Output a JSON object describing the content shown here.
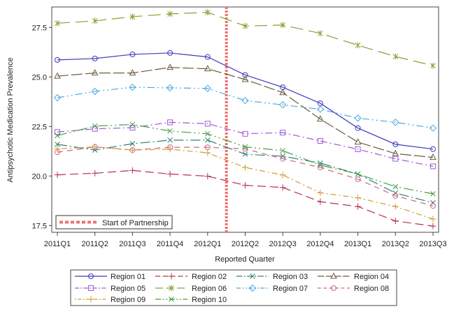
{
  "chart_data": {
    "type": "line",
    "title": "",
    "xlabel": "Reported Quarter",
    "ylabel": "Antipsychotic Medication Prevalence",
    "categories": [
      "2011Q1",
      "2011Q2",
      "2011Q3",
      "2011Q4",
      "2012Q1",
      "2012Q2",
      "2012Q3",
      "2012Q4",
      "2013Q1",
      "2013Q2",
      "2013Q3"
    ],
    "ylim": [
      17.2,
      28.6
    ],
    "yticks": [
      17.5,
      20.0,
      22.5,
      25.0,
      27.5
    ],
    "ytick_labels": [
      "17.5",
      "20.0",
      "22.5",
      "25.0",
      "27.5"
    ],
    "grid": false,
    "reference_line": {
      "label": "Start of Partnership",
      "position": "between 2012Q1 and 2012Q2",
      "color": "#f07070"
    },
    "legend_placement": "bottom",
    "series": [
      {
        "name": "Region 01",
        "color": "#3b3bbf",
        "marker": "circle",
        "dash": "",
        "values": [
          25.86,
          25.93,
          26.14,
          26.21,
          26.01,
          25.1,
          24.48,
          23.67,
          22.42,
          21.6,
          21.36
        ]
      },
      {
        "name": "Region 02",
        "color": "#b8304c",
        "marker": "plus",
        "dash": "12 6",
        "values": [
          20.06,
          20.14,
          20.28,
          20.1,
          19.99,
          19.53,
          19.42,
          18.7,
          18.46,
          17.73,
          17.47
        ]
      },
      {
        "name": "Region 03",
        "color": "#2f8070",
        "marker": "x",
        "dash": "14 4 2 4",
        "values": [
          21.6,
          21.31,
          21.63,
          21.81,
          21.81,
          21.1,
          21.0,
          20.65,
          20.1,
          19.14,
          18.65
        ]
      },
      {
        "name": "Region 04",
        "color": "#6e5c3c",
        "marker": "triangle",
        "dash": "16 4",
        "values": [
          25.04,
          25.2,
          25.2,
          25.48,
          25.41,
          24.87,
          24.21,
          22.87,
          21.71,
          21.13,
          20.94
        ]
      },
      {
        "name": "Region 05",
        "color": "#a05ad0",
        "marker": "square",
        "dash": "10 4 2 4",
        "values": [
          22.22,
          22.38,
          22.44,
          22.71,
          22.64,
          22.13,
          22.19,
          21.77,
          21.35,
          20.87,
          20.49
        ]
      },
      {
        "name": "Region 06",
        "color": "#8aa030",
        "marker": "asterisk",
        "dash": "18 8",
        "values": [
          27.71,
          27.83,
          28.04,
          28.18,
          28.26,
          27.57,
          27.62,
          27.2,
          26.6,
          26.03,
          25.57
        ]
      },
      {
        "name": "Region 07",
        "color": "#4aa8e0",
        "marker": "diamond",
        "dash": "10 4 2 4 2 4",
        "values": [
          23.95,
          24.27,
          24.48,
          24.45,
          24.42,
          23.81,
          23.59,
          23.37,
          22.92,
          22.71,
          22.42
        ]
      },
      {
        "name": "Region 08",
        "color": "#c86888",
        "marker": "circle",
        "dash": "8 6",
        "values": [
          21.2,
          21.47,
          21.31,
          21.45,
          21.45,
          21.37,
          20.87,
          20.43,
          19.84,
          19.0,
          18.49
        ]
      },
      {
        "name": "Region 09",
        "color": "#d49a30",
        "marker": "plus",
        "dash": "2 4 8 4",
        "values": [
          21.37,
          21.47,
          21.31,
          21.35,
          21.17,
          20.43,
          20.05,
          19.15,
          18.9,
          18.46,
          17.83
        ]
      },
      {
        "name": "Region 10",
        "color": "#40a040",
        "marker": "x",
        "dash": "14 4 2 4 2 4",
        "values": [
          22.04,
          22.52,
          22.6,
          22.27,
          22.13,
          21.47,
          21.28,
          20.55,
          20.1,
          19.46,
          19.1
        ]
      }
    ]
  }
}
